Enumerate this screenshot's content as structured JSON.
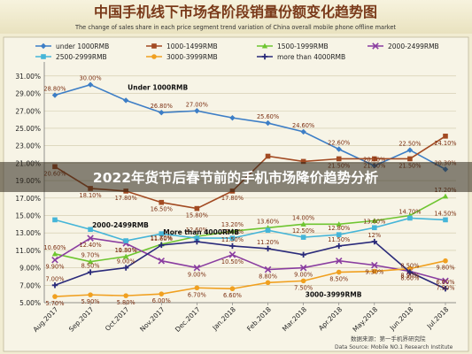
{
  "header": {
    "title_cn": "中国手机线下市场各阶段销量份额变化趋势图",
    "title_en": "The change of sales share in each price segment trend variation of China overall mobile phone offline market"
  },
  "overlay": {
    "headline": "2022年货节后春节前的手机市场降价趋势分析"
  },
  "source": {
    "label": "数据来源：第一手机界研究院",
    "en": "Data Source: Mobile NO.1 Research Institute"
  },
  "chart_data": {
    "type": "line",
    "x": [
      "Aug.2017",
      "Sep.2017",
      "Oct.2017",
      "Nov.2017",
      "Dec.2017",
      "Jan.2018",
      "Feb.2018",
      "Mar.2018",
      "Apr.2018",
      "May.2018",
      "Jun.2018",
      "Jul.2018"
    ],
    "ylim": [
      5,
      32
    ],
    "yticks": [
      "5.00%",
      "7.00%",
      "9.00%",
      "11.00%",
      "13.00%",
      "15.00%",
      "17.00%",
      "19.00%",
      "21.00%",
      "23.00%",
      "25.00%",
      "27.00%",
      "29.00%",
      "31.00%"
    ],
    "grid": true,
    "legend_position": "top",
    "series": [
      {
        "name": "under 1000RMB",
        "color": "#3d7ec6",
        "marker": "diamond",
        "values": [
          28.8,
          30.0,
          28.2,
          26.8,
          27.0,
          26.2,
          25.6,
          24.6,
          22.6,
          20.7,
          22.5,
          20.3
        ],
        "labels": [
          "28.80%",
          "30.00%",
          "",
          "26.80%",
          "27.00%",
          "",
          "25.60%",
          "24.60%",
          "22.60%",
          "20.70%",
          "22.50%",
          "20.30%"
        ]
      },
      {
        "name": "1000-1499RMB",
        "color": "#a24a22",
        "marker": "square",
        "values": [
          20.6,
          18.1,
          17.8,
          16.5,
          15.8,
          17.8,
          21.8,
          21.2,
          21.5,
          21.5,
          21.5,
          24.1
        ],
        "labels": [
          "20.60%",
          "18.10%",
          "17.80%",
          "16.50%",
          "15.80%",
          "17.80%",
          "",
          "",
          "21.50%",
          "21.50%",
          "21.50%",
          "24.10%"
        ]
      },
      {
        "name": "1500-1999RMB",
        "color": "#6ec530",
        "marker": "triangle",
        "values": [
          10.6,
          9.7,
          10.3,
          11.7,
          12.6,
          13.2,
          13.6,
          14.0,
          14.0,
          14.4,
          15.0,
          17.2
        ],
        "labels": [
          "10.60%",
          "9.70%",
          "10.30%",
          "11.70%",
          "12.60%",
          "13.20%",
          "13.60%",
          "14.00%",
          "",
          "",
          "",
          "17.20%"
        ]
      },
      {
        "name": "2000-2499RMB",
        "color": "#8a3da0",
        "marker": "x",
        "values": [
          9.9,
          12.4,
          11.8,
          9.8,
          9.0,
          10.5,
          8.8,
          9.0,
          9.8,
          9.3,
          8.6,
          7.5
        ],
        "labels": [
          "9.90%",
          "12.40%",
          "11.80%",
          "",
          "9.00%",
          "10.50%",
          "8.80%",
          "9.00%",
          "",
          "9.30%",
          "8.60%",
          "7.50%"
        ]
      },
      {
        "name": "2500-2999RMB",
        "color": "#45b5d8",
        "marker": "square",
        "values": [
          14.5,
          13.4,
          12.1,
          12.9,
          12.4,
          12.4,
          13.3,
          12.5,
          12.8,
          13.6,
          14.7,
          14.5
        ],
        "labels": [
          "",
          "",
          "",
          "",
          "",
          "12.40%",
          "",
          "12.50%",
          "12.80%",
          "13.60%",
          "14.70%",
          "14.50%"
        ]
      },
      {
        "name": "3000-3999RMB",
        "color": "#f0a020",
        "marker": "circle",
        "values": [
          5.7,
          5.9,
          5.8,
          6.0,
          6.7,
          6.6,
          7.3,
          7.5,
          8.5,
          8.6,
          8.9,
          9.8
        ],
        "labels": [
          "5.70%",
          "5.90%",
          "5.80%",
          "6.00%",
          "6.70%",
          "6.60%",
          "",
          "7.50%",
          "8.50%",
          "",
          "8.90%",
          "9.80%"
        ]
      },
      {
        "name": "more than 4000RMB",
        "color": "#2a2a7a",
        "marker": "cross",
        "values": [
          7.0,
          8.5,
          9.0,
          11.6,
          12.0,
          11.5,
          11.2,
          10.5,
          11.5,
          12.0,
          8.5,
          6.6
        ],
        "labels": [
          "7.00%",
          "8.50%",
          "9.00%",
          "11.60%",
          "",
          "11.50%",
          "11.20%",
          "",
          "11.50%",
          "12%",
          "8.50%",
          "6.60%"
        ]
      }
    ],
    "annotations": [
      {
        "text": "Under 1000RMB",
        "series": 0,
        "at": 2
      },
      {
        "text": "2000-2499RMB",
        "series": 3,
        "at": 1
      },
      {
        "text": "More than 4000RMB",
        "series": 6,
        "at": 3
      },
      {
        "text": "3000-3999RMB",
        "series": 5,
        "at": 7
      }
    ]
  }
}
